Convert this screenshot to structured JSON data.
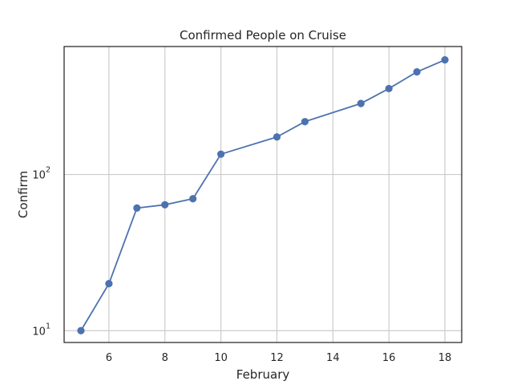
{
  "chart_data": {
    "type": "line",
    "title": "Confirmed People on Cruise",
    "xlabel": "February",
    "ylabel": "Confirm",
    "yscale": "log",
    "xlim": [
      4.4,
      18.6
    ],
    "ylim": [
      8.4,
      660
    ],
    "grid": true,
    "x_ticks": [
      6,
      8,
      10,
      12,
      14,
      16,
      18
    ],
    "y_ticks": [
      {
        "value": 10,
        "base": "10",
        "exp": "1"
      },
      {
        "value": 100,
        "base": "10",
        "exp": "2"
      }
    ],
    "color": "#4c72b0",
    "series": [
      {
        "x": [
          5,
          6,
          7,
          8,
          9,
          10,
          12,
          13,
          15,
          16,
          17,
          18
        ],
        "y": [
          10,
          20,
          61,
          64,
          70,
          135,
          174,
          218,
          285,
          355,
          454,
          542
        ]
      }
    ]
  }
}
